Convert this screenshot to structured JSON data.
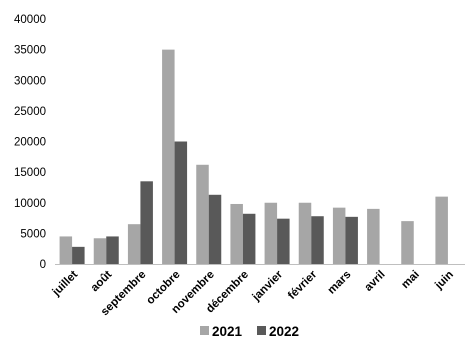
{
  "chart_data": {
    "type": "bar",
    "categories": [
      "juillet",
      "août",
      "septembre",
      "octobre",
      "novembre",
      "décembre",
      "janvier",
      "février",
      "mars",
      "avril",
      "mai",
      "juin"
    ],
    "series": [
      {
        "name": "2021",
        "color": "#a6a6a6",
        "values": [
          4500,
          4200,
          6500,
          35000,
          16200,
          9800,
          10000,
          10000,
          9200,
          9000,
          7000,
          11000
        ]
      },
      {
        "name": "2022",
        "color": "#595959",
        "values": [
          2800,
          4500,
          13500,
          20000,
          11300,
          8200,
          7400,
          7800,
          7700,
          null,
          null,
          null
        ]
      }
    ],
    "ylim": [
      0,
      40000
    ],
    "yticks": [
      0,
      5000,
      10000,
      15000,
      20000,
      25000,
      30000,
      35000,
      40000
    ],
    "grid": false,
    "legend": "bottom",
    "title": "",
    "xlabel": "",
    "ylabel": ""
  }
}
